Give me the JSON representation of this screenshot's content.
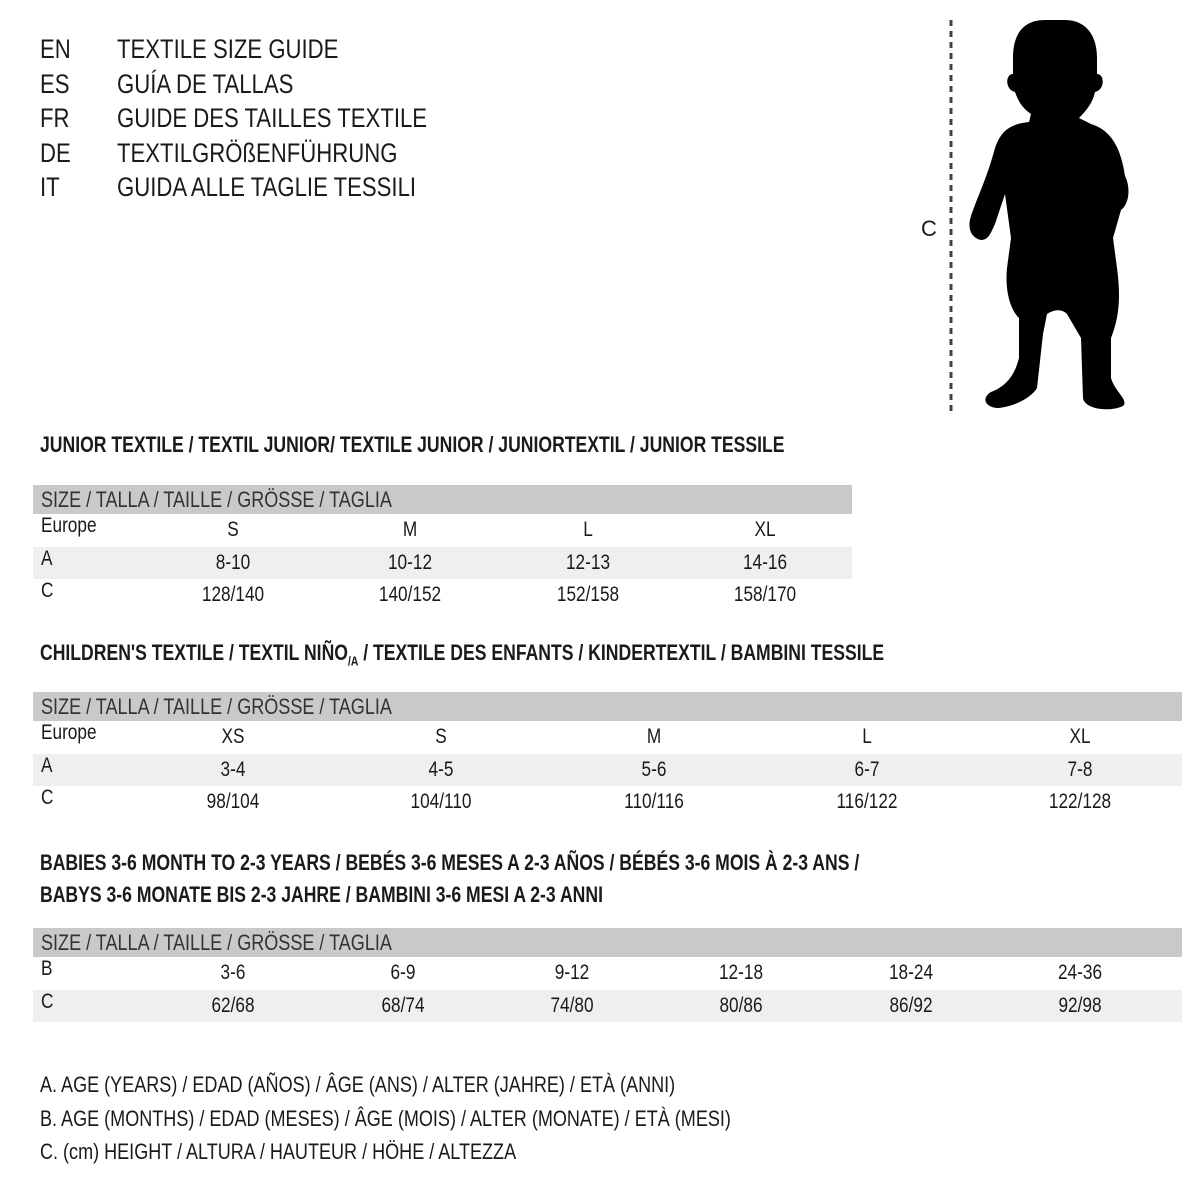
{
  "titles": [
    {
      "code": "EN",
      "text": "TEXTILE SIZE GUIDE"
    },
    {
      "code": "ES",
      "text": "GUÍA DE TALLAS"
    },
    {
      "code": "FR",
      "text": "GUIDE DES TAILLES TEXTILE"
    },
    {
      "code": "DE",
      "text": "TEXTILGRÖßENFÜHRUNG"
    },
    {
      "code": "IT",
      "text": "GUIDA ALLE TAGLIE TESSILI"
    }
  ],
  "figure": {
    "measure_label": "C",
    "icon": "child-silhouette"
  },
  "size_header": "SIZE / TALLA / TAILLE / GRÖSSE / TAGLIA",
  "junior": {
    "heading": "JUNIOR TEXTILE / TEXTIL JUNIOR/ TEXTILE JUNIOR / JUNIORTEXTIL / JUNIOR TESSILE",
    "rows": [
      {
        "label": "Europe",
        "cells": [
          "S",
          "M",
          "L",
          "XL"
        ]
      },
      {
        "label": "A",
        "cells": [
          "8-10",
          "10-12",
          "12-13",
          "14-16"
        ]
      },
      {
        "label": "C",
        "cells": [
          "128/140",
          "140/152",
          "152/158",
          "158/170"
        ]
      }
    ]
  },
  "children": {
    "heading_a": "CHILDREN'S TEXTILE / TEXTIL NIÑO",
    "heading_sub": "/A",
    "heading_b": " / TEXTILE DES ENFANTS / KINDERTEXTIL / BAMBINI TESSILE",
    "rows": [
      {
        "label": "Europe",
        "cells": [
          "XS",
          "S",
          "M",
          "L",
          "XL"
        ]
      },
      {
        "label": "A",
        "cells": [
          "3-4",
          "4-5",
          "5-6",
          "6-7",
          "7-8"
        ]
      },
      {
        "label": "C",
        "cells": [
          "98/104",
          "104/110",
          "110/116",
          "116/122",
          "122/128"
        ]
      }
    ]
  },
  "babies": {
    "heading_1": "BABIES 3-6 MONTH TO 2-3 YEARS / BEBÉS 3-6 MESES A 2-3 AÑOS / BÉBÉS 3-6 MOIS À 2-3 ANS /",
    "heading_2": "BABYS 3-6 MONATE BIS 2-3 JAHRE / BAMBINI 3-6 MESI A 2-3 ANNI",
    "rows": [
      {
        "label": "B",
        "cells": [
          "3-6",
          "6-9",
          "9-12",
          "12-18",
          "18-24",
          "24-36"
        ]
      },
      {
        "label": "C",
        "cells": [
          "62/68",
          "68/74",
          "74/80",
          "80/86",
          "86/92",
          "92/98"
        ]
      }
    ]
  },
  "notes": [
    "A. AGE (YEARS) / EDAD (AÑOS) / ÂGE (ANS) / ALTER (JAHRE) / ETÀ (ANNI)",
    "B. AGE (MONTHS) / EDAD (MESES) / ÂGE (MOIS) / ALTER (MONATE) / ETÀ (MESI)",
    "C. (cm) HEIGHT / ALTURA / HAUTEUR / HÖHE / ALTEZZA"
  ],
  "colors": {
    "header_bar": "#c9c9c9",
    "shaded_row": "#efefef"
  }
}
